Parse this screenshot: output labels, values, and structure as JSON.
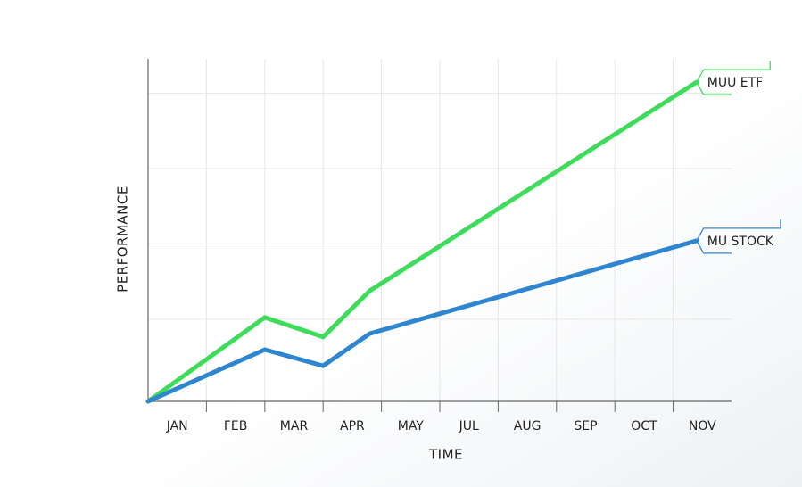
{
  "chart_data": {
    "type": "line",
    "x_label": "TIME",
    "y_label": "PERFORMANCE",
    "categories": [
      "JAN",
      "FEB",
      "MAR",
      "APR",
      "MAY",
      "JUL",
      "AUG",
      "SEP",
      "OCT",
      "NOV"
    ],
    "x": [
      0,
      2,
      3,
      3.8,
      9.4
    ],
    "xlim": [
      0,
      10
    ],
    "ylim": [
      0,
      100
    ],
    "yticks": [
      24,
      46,
      68,
      90
    ],
    "grid": true,
    "series": [
      {
        "name": "MUU ETF",
        "color": "#3ddc5a",
        "values": [
          0,
          24.5,
          18.8,
          32.3,
          93.2
        ]
      },
      {
        "name": "MU STOCK",
        "color": "#2e86d0",
        "values": [
          0,
          15.1,
          10.4,
          19.8,
          46.9
        ]
      }
    ]
  }
}
